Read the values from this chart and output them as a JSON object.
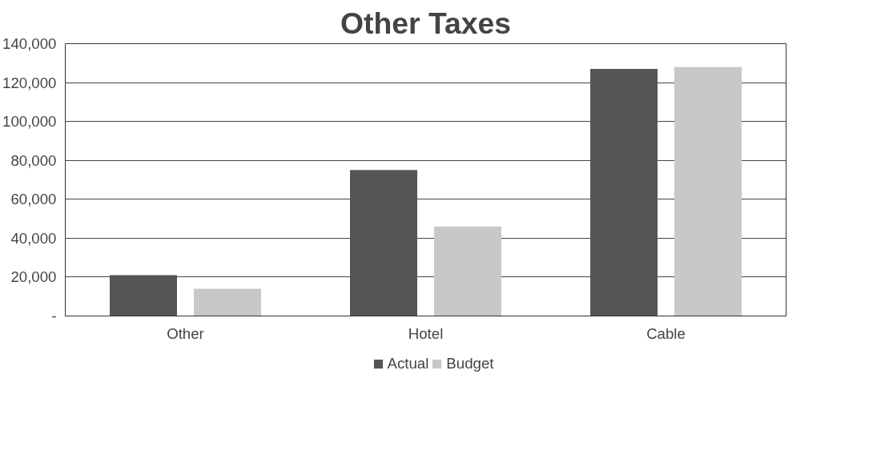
{
  "chart_data": {
    "type": "bar",
    "title": "Other Taxes",
    "categories": [
      "Other",
      "Hotel",
      "Cable"
    ],
    "series": [
      {
        "name": "Actual",
        "color": "#555555",
        "values": [
          21000,
          75000,
          127000
        ]
      },
      {
        "name": "Budget",
        "color": "#c8c8c8",
        "values": [
          14000,
          46000,
          128000
        ]
      }
    ],
    "ylim": [
      0,
      140000
    ],
    "yticks": [
      {
        "value": 0,
        "label": "-"
      },
      {
        "value": 20000,
        "label": "20,000"
      },
      {
        "value": 40000,
        "label": "40,000"
      },
      {
        "value": 60000,
        "label": "60,000"
      },
      {
        "value": 80000,
        "label": "80,000"
      },
      {
        "value": 100000,
        "label": "100,000"
      },
      {
        "value": 120000,
        "label": "120,000"
      },
      {
        "value": 140000,
        "label": "140,000"
      }
    ],
    "grid": "y",
    "legend": "bottom"
  }
}
